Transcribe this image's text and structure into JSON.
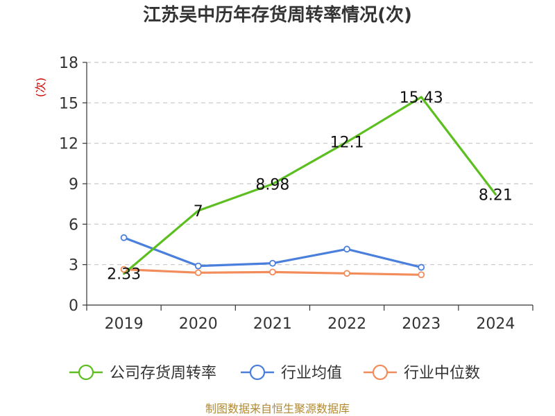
{
  "chart_data": {
    "type": "line",
    "title": "江苏吴中历年存货周转率情况(次)",
    "y_unit": "(次)",
    "categories": [
      "2019",
      "2020",
      "2021",
      "2022",
      "2023",
      "2024"
    ],
    "ylim": [
      0,
      18
    ],
    "y_ticks": [
      0,
      3,
      6,
      9,
      12,
      15,
      18
    ],
    "grid": true,
    "legend_position": "bottom",
    "series": [
      {
        "name": "公司存货周转率",
        "color": "#5cbf1f",
        "values": [
          2.33,
          7,
          8.98,
          12.1,
          15.43,
          8.21
        ],
        "labels": [
          "2.33",
          "7",
          "8.98",
          "12.1",
          "15.43",
          "8.21"
        ],
        "show_labels": true,
        "show_markers": false
      },
      {
        "name": "行业均值",
        "color": "#4a7fdc",
        "values": [
          5.0,
          2.9,
          3.1,
          4.15,
          2.8,
          null
        ],
        "show_labels": false,
        "show_markers": true
      },
      {
        "name": "行业中位数",
        "color": "#f28c5a",
        "values": [
          2.65,
          2.4,
          2.45,
          2.35,
          2.25,
          null
        ],
        "show_labels": false,
        "show_markers": true
      }
    ]
  },
  "footer": {
    "source": "制图数据来自恒生聚源数据库"
  }
}
